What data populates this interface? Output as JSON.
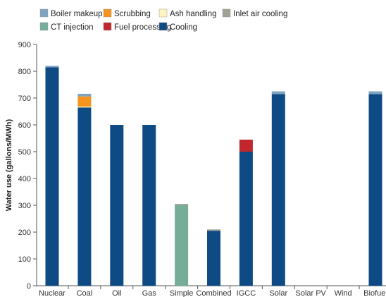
{
  "chart_data": {
    "type": "bar",
    "stacked": true,
    "ylabel": "Water use (gallons/MWh)",
    "xlabel": "",
    "ylim": [
      0,
      900
    ],
    "yticks": [
      0,
      100,
      200,
      300,
      400,
      500,
      600,
      700,
      800,
      900
    ],
    "grid": false,
    "legend_position": "top",
    "categories": [
      "Nuclear",
      "Coal",
      "Oil",
      "Gas",
      "Simple",
      "Combined",
      "IGCC",
      "Solar",
      "Solar PV",
      "Wind",
      "Biofuel"
    ],
    "series": [
      {
        "name": "Cooling",
        "color": "#0e4a84",
        "values": [
          815,
          665,
          600,
          600,
          0,
          205,
          500,
          715,
          0,
          0,
          715
        ]
      },
      {
        "name": "CT injection",
        "color": "#76ad98",
        "values": [
          0,
          0,
          0,
          0,
          300,
          0,
          0,
          0,
          0,
          0,
          0
        ]
      },
      {
        "name": "Fuel processing",
        "color": "#c1272d",
        "values": [
          0,
          0,
          0,
          0,
          0,
          0,
          45,
          0,
          0,
          0,
          0
        ]
      },
      {
        "name": "Ash handling",
        "color": "#fff5c0",
        "values": [
          0,
          3,
          0,
          0,
          0,
          0,
          0,
          0,
          0,
          0,
          0
        ]
      },
      {
        "name": "Scrubbing",
        "color": "#f7941d",
        "values": [
          0,
          38,
          0,
          0,
          0,
          0,
          0,
          0,
          0,
          0,
          0
        ]
      },
      {
        "name": "Inlet air cooling",
        "color": "#a0a197",
        "values": [
          0,
          0,
          0,
          0,
          5,
          5,
          0,
          0,
          0,
          0,
          0
        ]
      },
      {
        "name": "Boiler makeup",
        "color": "#7fa4c1",
        "values": [
          5,
          10,
          0,
          0,
          0,
          0,
          0,
          10,
          0,
          0,
          10
        ]
      }
    ]
  },
  "legend": [
    {
      "label": "Boiler makeup",
      "color": "#7fa4c1"
    },
    {
      "label": "Scrubbing",
      "color": "#f7941d"
    },
    {
      "label": "Ash handling",
      "color": "#fff5c0"
    },
    {
      "label": "Inlet air cooling",
      "color": "#a0a197"
    },
    {
      "label": "CT injection",
      "color": "#76ad98"
    },
    {
      "label": "Fuel processing",
      "color": "#c1272d"
    },
    {
      "label": "Cooling",
      "color": "#0e4a84"
    }
  ]
}
